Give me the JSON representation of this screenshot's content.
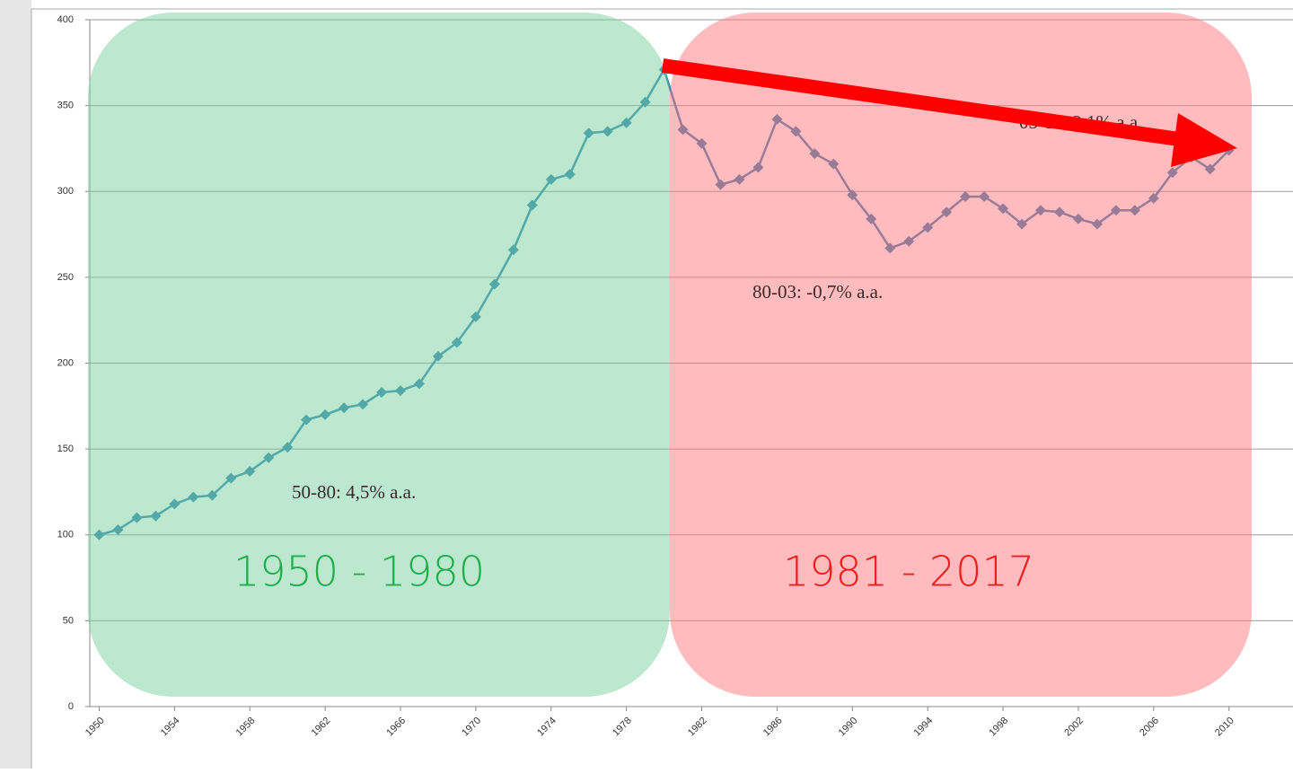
{
  "chart_data": {
    "type": "line",
    "x": [
      1950,
      1951,
      1952,
      1953,
      1954,
      1955,
      1956,
      1957,
      1958,
      1959,
      1960,
      1961,
      1962,
      1963,
      1964,
      1965,
      1966,
      1967,
      1968,
      1969,
      1970,
      1971,
      1972,
      1973,
      1974,
      1975,
      1976,
      1977,
      1978,
      1979,
      1980,
      1981,
      1982,
      1983,
      1984,
      1985,
      1986,
      1987,
      1988,
      1989,
      1990,
      1991,
      1992,
      1993,
      1994,
      1995,
      1996,
      1997,
      1998,
      1999,
      2000,
      2001,
      2002,
      2003,
      2004,
      2005,
      2006,
      2007,
      2008,
      2009,
      2010
    ],
    "values": [
      100,
      103,
      110,
      111,
      118,
      122,
      123,
      133,
      137,
      145,
      151,
      167,
      170,
      174,
      176,
      183,
      184,
      188,
      204,
      212,
      227,
      246,
      266,
      292,
      307,
      310,
      334,
      335,
      340,
      352,
      371,
      336,
      328,
      304,
      307,
      314,
      342,
      335,
      322,
      316,
      298,
      284,
      267,
      271,
      279,
      288,
      297,
      297,
      290,
      281,
      289,
      288,
      284,
      281,
      289,
      289,
      296,
      311,
      320,
      313,
      324
    ],
    "color": "#2f7fb0",
    "xlim": [
      1949.5,
      2013.4
    ],
    "xticks": [
      1950,
      1954,
      1958,
      1962,
      1966,
      1970,
      1974,
      1978,
      1982,
      1986,
      1990,
      1994,
      1998,
      2002,
      2006,
      2010
    ],
    "ylim": [
      0,
      400
    ],
    "yticks": [
      0,
      50,
      100,
      150,
      200,
      250,
      300,
      350,
      400
    ],
    "grid": true,
    "annotations": [
      "50-80: 4,5% a.a.",
      "80-03: -0,7% a.a.",
      "03-11: 2,1% a.a."
    ],
    "period_labels": [
      "1950 - 1980",
      "1981 - 2017"
    ]
  }
}
